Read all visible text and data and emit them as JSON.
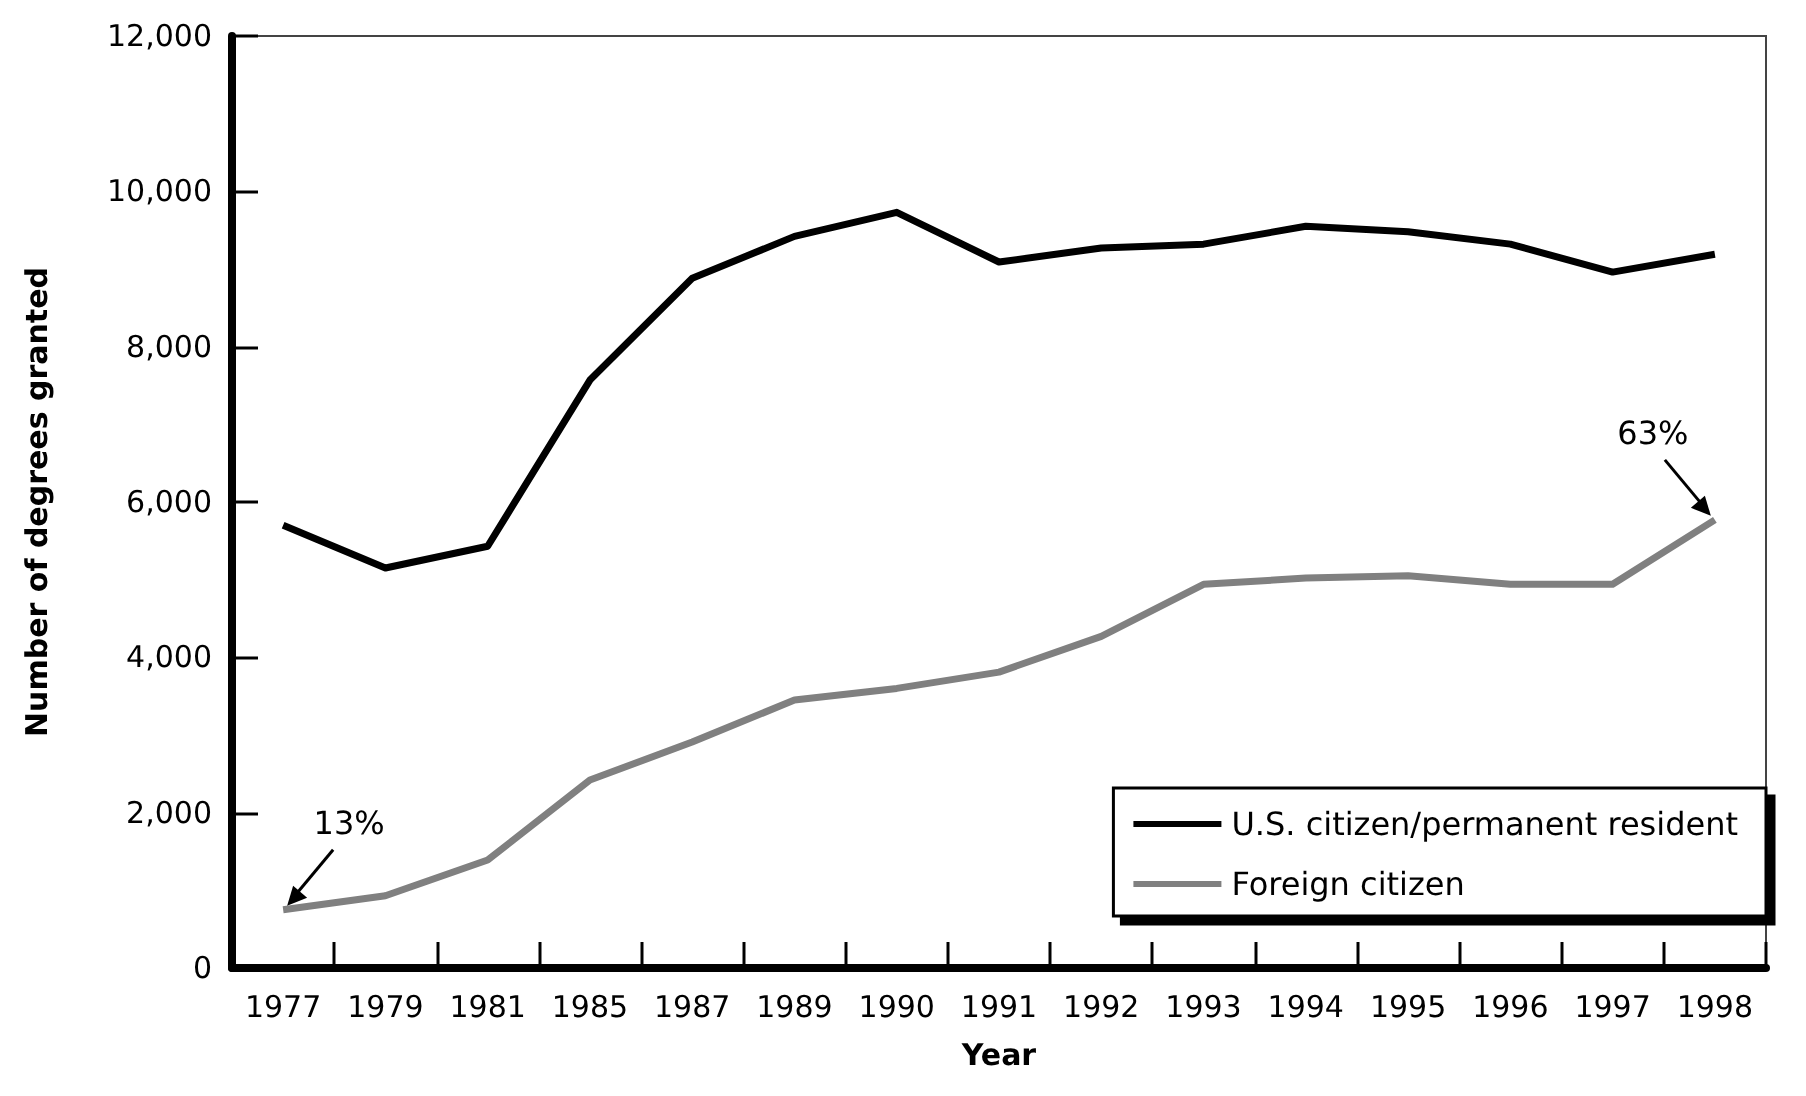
{
  "chart_data": {
    "type": "line",
    "xlabel": "Year",
    "ylabel": "Number of degrees granted",
    "categories": [
      "1977",
      "1979",
      "1981",
      "1985",
      "1987",
      "1989",
      "1990",
      "1991",
      "1992",
      "1993",
      "1994",
      "1995",
      "1996",
      "1997",
      "1998"
    ],
    "series": [
      {
        "name": "U.S. citizen/permanent resident",
        "color": "#000000",
        "values": [
          5700,
          5150,
          5430,
          7570,
          8880,
          9420,
          9730,
          9090,
          9270,
          9320,
          9550,
          9480,
          9320,
          8960,
          9190
        ]
      },
      {
        "name": "Foreign citizen",
        "color": "#808080",
        "values": [
          750,
          930,
          1390,
          2420,
          2910,
          3450,
          3600,
          3810,
          4270,
          4940,
          5020,
          5050,
          4940,
          4940,
          5770
        ]
      }
    ],
    "ylim": [
      0,
      12000
    ],
    "yticks": [
      0,
      {
        "value": 2000,
        "label": "2,000"
      },
      {
        "value": 4000,
        "label": "4,000"
      },
      {
        "value": 6000,
        "label": "6,000"
      },
      {
        "value": 8000,
        "label": "8,000"
      },
      {
        "value": 10000,
        "label": "10,000"
      },
      {
        "value": 12000,
        "label": "12,000"
      }
    ],
    "annotations": [
      {
        "text": "13%",
        "x": "1977",
        "y": 750
      },
      {
        "text": "63%",
        "x": "1998",
        "y": 5770
      }
    ],
    "grid": false,
    "legend": "bottom right",
    "marker": "none",
    "line_style": "solid"
  }
}
